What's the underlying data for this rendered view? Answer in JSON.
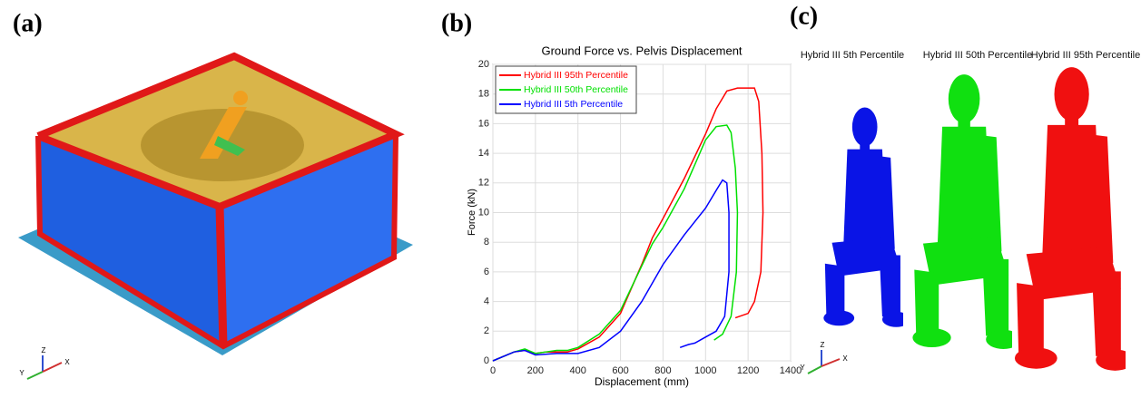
{
  "panel_labels": [
    "(a)",
    "(b)",
    "(c)"
  ],
  "axis_triad": [
    "Z",
    "Y",
    "X"
  ],
  "dummy_labels": [
    "Hybrid III 5th Percentile",
    "Hybrid III 50th Percentile",
    "Hybrid III 95th Percentile"
  ],
  "chart_data": {
    "type": "line",
    "title": "Ground Force vs. Pelvis Displacement",
    "x_label": "Displacement (mm)",
    "y_label": "Force (kN)",
    "xlim": [
      0,
      1400
    ],
    "xticks": [
      0,
      200,
      400,
      600,
      800,
      1000,
      1200,
      1400
    ],
    "ylim": [
      0,
      20
    ],
    "yticks": [
      0,
      2,
      4,
      6,
      8,
      10,
      12,
      14,
      16,
      18,
      20
    ],
    "grid": true,
    "legend": "upper left",
    "series": [
      {
        "name": "Hybrid III 95th Percentile",
        "color": "#ff0000",
        "x": [
          0,
          100,
          150,
          200,
          250,
          300,
          350,
          400,
          500,
          600,
          700,
          750,
          800,
          900,
          1000,
          1050,
          1100,
          1150,
          1200,
          1230,
          1250,
          1265,
          1270,
          1260,
          1230,
          1200,
          1140
        ],
        "values": [
          0,
          0.6,
          0.7,
          0.5,
          0.6,
          0.6,
          0.6,
          0.8,
          1.6,
          3.2,
          6.5,
          8.3,
          9.6,
          12.3,
          15.3,
          17,
          18.2,
          18.4,
          18.4,
          18.4,
          17.5,
          14,
          10,
          6,
          4,
          3.2,
          2.9
        ]
      },
      {
        "name": "Hybrid III 50th Percentile",
        "color": "#00e000",
        "x": [
          0,
          100,
          150,
          200,
          250,
          300,
          350,
          400,
          500,
          600,
          700,
          750,
          800,
          900,
          1000,
          1050,
          1100,
          1120,
          1140,
          1150,
          1145,
          1120,
          1080,
          1040
        ],
        "values": [
          0,
          0.6,
          0.8,
          0.5,
          0.6,
          0.7,
          0.7,
          0.9,
          1.8,
          3.4,
          6.4,
          7.9,
          9,
          11.6,
          14.9,
          15.8,
          15.9,
          15.4,
          13,
          10,
          6,
          3,
          1.8,
          1.4
        ]
      },
      {
        "name": "Hybrid III 5th Percentile",
        "color": "#0000ff",
        "x": [
          0,
          100,
          150,
          200,
          300,
          400,
          500,
          600,
          700,
          800,
          900,
          1000,
          1050,
          1080,
          1100,
          1110,
          1110,
          1090,
          1050,
          1000,
          950,
          920,
          880
        ],
        "values": [
          0,
          0.6,
          0.7,
          0.4,
          0.5,
          0.5,
          0.9,
          2,
          4,
          6.5,
          8.5,
          10.3,
          11.5,
          12.2,
          12,
          10,
          6,
          3,
          2,
          1.6,
          1.2,
          1.1,
          0.9
        ]
      }
    ]
  }
}
